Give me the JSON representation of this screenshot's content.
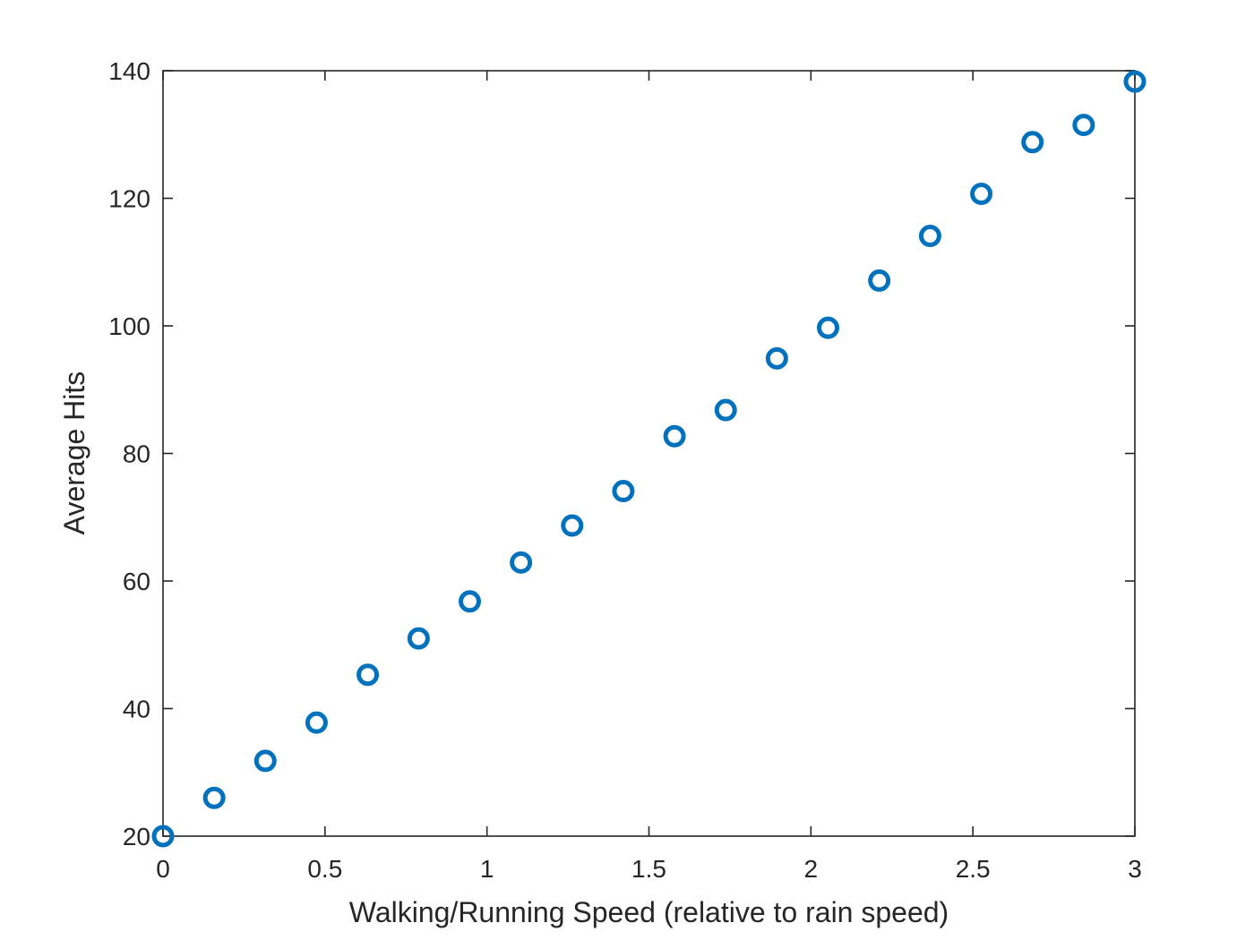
{
  "chart_data": {
    "type": "scatter",
    "title": "",
    "xlabel": "Walking/Running Speed (relative to rain speed)",
    "ylabel": "Average Hits",
    "xlim": [
      0,
      3
    ],
    "ylim": [
      20,
      140
    ],
    "xticks": [
      0,
      0.5,
      1,
      1.5,
      2,
      2.5,
      3
    ],
    "xtick_labels": [
      "0",
      "0.5",
      "1",
      "1.5",
      "2",
      "2.5",
      "3"
    ],
    "yticks": [
      20,
      40,
      60,
      80,
      100,
      120,
      140
    ],
    "ytick_labels": [
      "20",
      "40",
      "60",
      "80",
      "100",
      "120",
      "140"
    ],
    "grid": false,
    "legend": "none",
    "marker": "open-circle",
    "marker_color": "#0072BD",
    "axis_color": "#262626",
    "x": [
      0,
      0.158,
      0.316,
      0.474,
      0.632,
      0.789,
      0.947,
      1.105,
      1.263,
      1.421,
      1.579,
      1.737,
      1.895,
      2.053,
      2.211,
      2.368,
      2.526,
      2.684,
      2.842,
      3.0
    ],
    "y": [
      20.0,
      26.0,
      31.8,
      37.8,
      45.3,
      51.0,
      56.8,
      62.9,
      68.7,
      74.1,
      82.7,
      86.8,
      94.9,
      99.7,
      107.1,
      114.1,
      120.7,
      128.8,
      131.5,
      138.3
    ]
  }
}
